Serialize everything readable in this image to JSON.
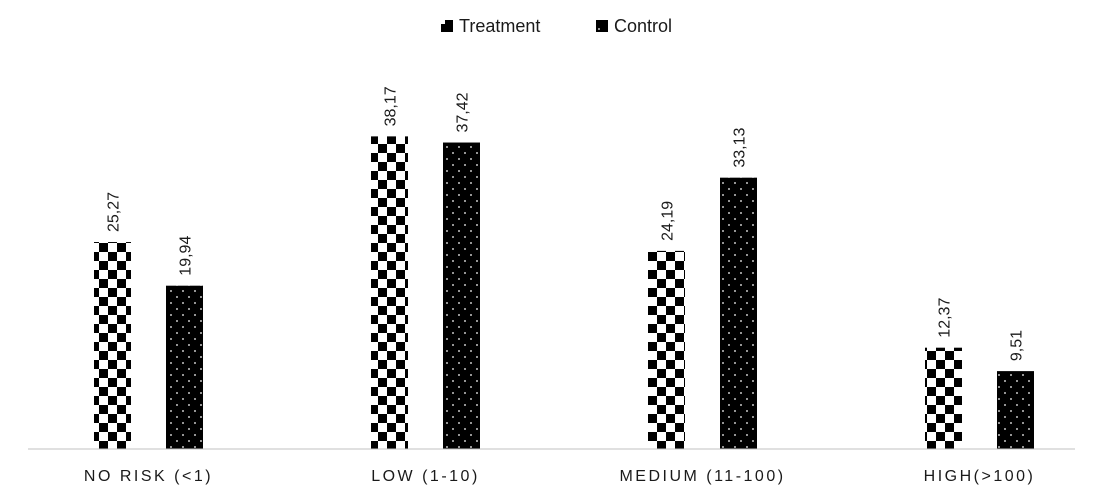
{
  "chart_data": {
    "type": "bar",
    "categories": [
      "NO RISK (<1)",
      "LOW (1-10)",
      "MEDIUM (11-100)",
      "HIGH(>100)"
    ],
    "series": [
      {
        "name": "Treatment",
        "values": [
          25.27,
          38.17,
          24.19,
          12.37
        ],
        "labels": [
          "25,27",
          "38,17",
          "24,19",
          "12,37"
        ],
        "pattern": "checkerboard"
      },
      {
        "name": "Control",
        "values": [
          19.94,
          37.42,
          33.13,
          9.51
        ],
        "labels": [
          "19,94",
          "37,42",
          "33,13",
          "9,51"
        ],
        "pattern": "dotted-black"
      }
    ],
    "title": "",
    "xlabel": "",
    "ylabel": "",
    "ylim": [
      0,
      40
    ],
    "grid": false,
    "legend": "top-center",
    "colors": {
      "bar": "#000000",
      "background": "#ffffff",
      "axis": "#c0c0c0"
    }
  }
}
